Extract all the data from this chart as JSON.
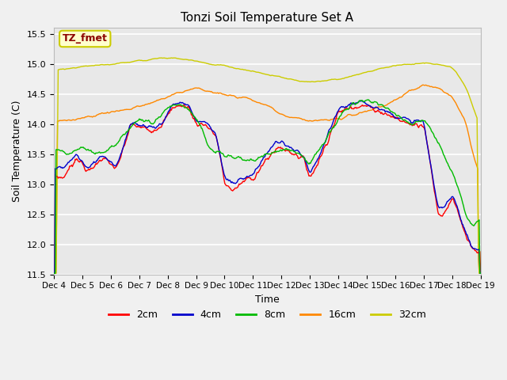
{
  "title": "Tonzi Soil Temperature Set A",
  "xlabel": "Time",
  "ylabel": "Soil Temperature (C)",
  "ylim": [
    11.5,
    15.6
  ],
  "annotation_text": "TZ_fmet",
  "annotation_color": "#8B0000",
  "annotation_bg": "#FFFFCC",
  "annotation_border": "#CCCC00",
  "fig_bg": "#F0F0F0",
  "plot_bg": "#E8E8E8",
  "grid_color": "white",
  "series": {
    "2cm": {
      "color": "#FF0000",
      "lw": 1.0
    },
    "4cm": {
      "color": "#0000CC",
      "lw": 1.0
    },
    "8cm": {
      "color": "#00BB00",
      "lw": 1.0
    },
    "16cm": {
      "color": "#FF8800",
      "lw": 1.0
    },
    "32cm": {
      "color": "#CCCC00",
      "lw": 1.0
    }
  },
  "xtick_labels": [
    "Dec 4",
    "Dec 5",
    "Dec 6",
    "Dec 7",
    "Dec 8",
    "Dec 9",
    "Dec 10",
    "Dec 11",
    "Dec 12",
    "Dec 13",
    "Dec 14",
    "Dec 15",
    "Dec 16",
    "Dec 17",
    "Dec 18",
    "Dec 19"
  ],
  "yticks": [
    11.5,
    12.0,
    12.5,
    13.0,
    13.5,
    14.0,
    14.5,
    15.0,
    15.5
  ],
  "n_points": 600
}
